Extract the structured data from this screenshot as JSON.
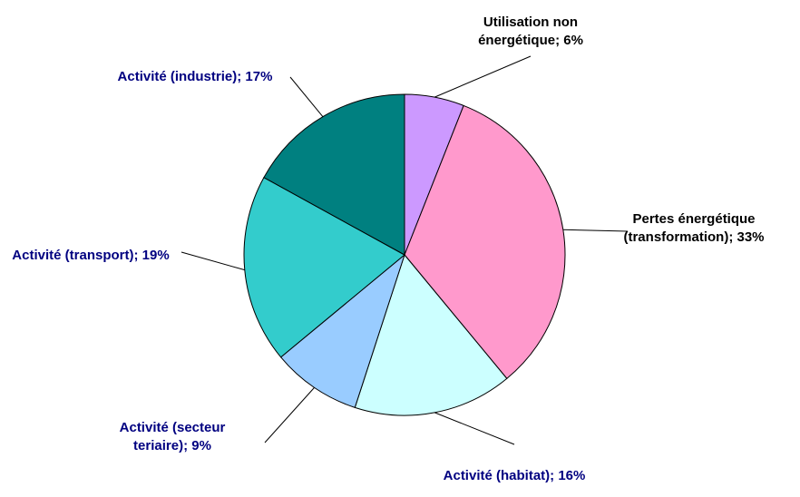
{
  "chart_data": {
    "type": "pie",
    "categories": [
      "Utilisation non énergétique;",
      "Pertes énergétique (transformation);",
      "Activité (habitat);",
      "Activité (secteur teriaire);",
      "Activité (transport);",
      "Activité (industrie);"
    ],
    "values": [
      6,
      33,
      16,
      9,
      19,
      17
    ],
    "value_labels": [
      "6%",
      "33%",
      "16%",
      "9%",
      "19%",
      "17%"
    ],
    "colors": [
      "#cc99ff",
      "#ff99cc",
      "#ccffff",
      "#99ccff",
      "#33cccc",
      "#008080"
    ],
    "label_colors": [
      "#000000",
      "#000000",
      "#000080",
      "#000080",
      "#000080",
      "#000080"
    ]
  }
}
